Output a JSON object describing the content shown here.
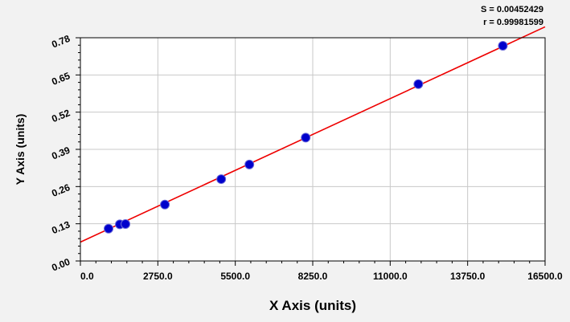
{
  "stats": {
    "s_text": "S = 0.00452429",
    "r_text": "r = 0.99981599"
  },
  "chart_data": {
    "type": "scatter",
    "xlabel": "X Axis (units)",
    "ylabel": "Y Axis (units)",
    "xlim": [
      0,
      16500
    ],
    "ylim": [
      0,
      0.78
    ],
    "x_ticks": [
      "0.0",
      "2750.0",
      "5500.0",
      "8250.0",
      "11000.0",
      "13750.0",
      "16500.0"
    ],
    "y_ticks": [
      "0.00",
      "0.13",
      "0.26",
      "0.39",
      "0.52",
      "0.65",
      "0.78"
    ],
    "grid": true,
    "series": [
      {
        "points": [
          {
            "x": 1000,
            "y": 0.113
          },
          {
            "x": 1400,
            "y": 0.128
          },
          {
            "x": 1600,
            "y": 0.129
          },
          {
            "x": 3000,
            "y": 0.197
          },
          {
            "x": 5000,
            "y": 0.286
          },
          {
            "x": 6000,
            "y": 0.337
          },
          {
            "x": 8000,
            "y": 0.431
          },
          {
            "x": 12000,
            "y": 0.618
          },
          {
            "x": 15000,
            "y": 0.752
          }
        ]
      }
    ],
    "fit_line": {
      "x_start": 0,
      "y_start": 0.066,
      "x_end": 16500,
      "y_end": 0.818
    },
    "colors": {
      "points": "#0000cc",
      "fit": "#ee0000",
      "grid": "#c8c8c8",
      "plot_bg": "#ffffff",
      "page_bg": "#f2f2f2"
    }
  }
}
